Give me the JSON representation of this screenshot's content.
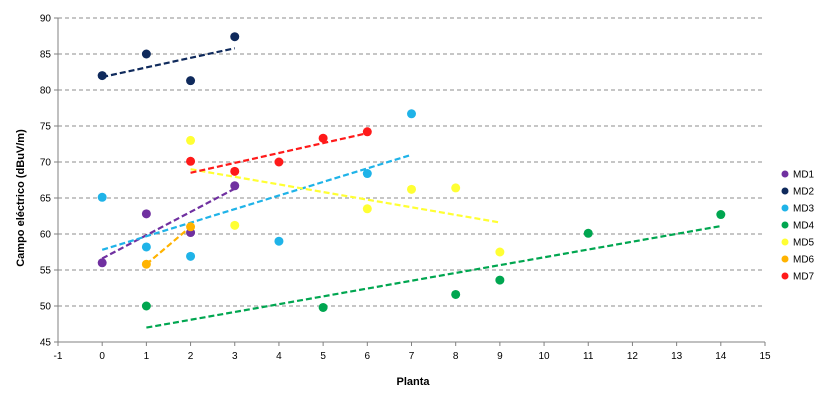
{
  "chart_data": {
    "type": "scatter",
    "title": "",
    "xlabel": "Planta",
    "ylabel": "Campo eléctrico (dBuV/m)",
    "xlim": [
      -1,
      15
    ],
    "ylim": [
      45,
      90
    ],
    "xticks": [
      -1,
      0,
      1,
      2,
      3,
      4,
      5,
      6,
      7,
      8,
      9,
      10,
      11,
      12,
      13,
      14,
      15
    ],
    "yticks": [
      45,
      50,
      55,
      60,
      65,
      70,
      75,
      80,
      85,
      90
    ],
    "grid": "horizontal dashed",
    "legend_position": "right",
    "trendlines": "linear, dashed",
    "series": [
      {
        "name": "MD1",
        "color": "#7030a0",
        "points": [
          [
            0,
            56
          ],
          [
            1,
            62.8
          ],
          [
            2,
            60.2
          ],
          [
            3,
            66.7
          ]
        ],
        "trend": [
          [
            0,
            56.6
          ],
          [
            3,
            66.3
          ]
        ]
      },
      {
        "name": "MD2",
        "color": "#0f2a5c",
        "points": [
          [
            0,
            82
          ],
          [
            1,
            85
          ],
          [
            2,
            81.3
          ],
          [
            3,
            87.4
          ]
        ],
        "trend": [
          [
            0,
            81.8
          ],
          [
            3,
            85.8
          ]
        ]
      },
      {
        "name": "MD3",
        "color": "#1fb3e8",
        "points": [
          [
            0,
            65.1
          ],
          [
            1,
            58.2
          ],
          [
            2,
            56.9
          ],
          [
            4,
            59
          ],
          [
            6,
            68.4
          ],
          [
            7,
            76.7
          ]
        ],
        "trend": [
          [
            0,
            57.8
          ],
          [
            7,
            71
          ]
        ]
      },
      {
        "name": "MD4",
        "color": "#00a650",
        "points": [
          [
            1,
            50
          ],
          [
            5,
            49.8
          ],
          [
            8,
            51.6
          ],
          [
            9,
            53.6
          ],
          [
            11,
            60.1
          ],
          [
            14,
            62.7
          ]
        ],
        "trend": [
          [
            1,
            47
          ],
          [
            14,
            61.1
          ]
        ]
      },
      {
        "name": "MD5",
        "color": "#ffff33",
        "points": [
          [
            2,
            73
          ],
          [
            3,
            61.2
          ],
          [
            6,
            63.5
          ],
          [
            7,
            66.2
          ],
          [
            8,
            66.4
          ],
          [
            9,
            57.5
          ]
        ],
        "trend": [
          [
            2,
            69
          ],
          [
            9,
            61.6
          ]
        ]
      },
      {
        "name": "MD6",
        "color": "#ffb300",
        "points": [
          [
            1,
            55.8
          ],
          [
            2,
            61
          ]
        ],
        "trend": [
          [
            1,
            55.8
          ],
          [
            2,
            61
          ]
        ]
      },
      {
        "name": "MD7",
        "color": "#ff1a1a",
        "points": [
          [
            2,
            70.1
          ],
          [
            3,
            68.7
          ],
          [
            4,
            70
          ],
          [
            5,
            73.3
          ],
          [
            6,
            74.2
          ]
        ],
        "trend": [
          [
            2,
            68.5
          ],
          [
            6,
            74
          ]
        ]
      }
    ]
  }
}
